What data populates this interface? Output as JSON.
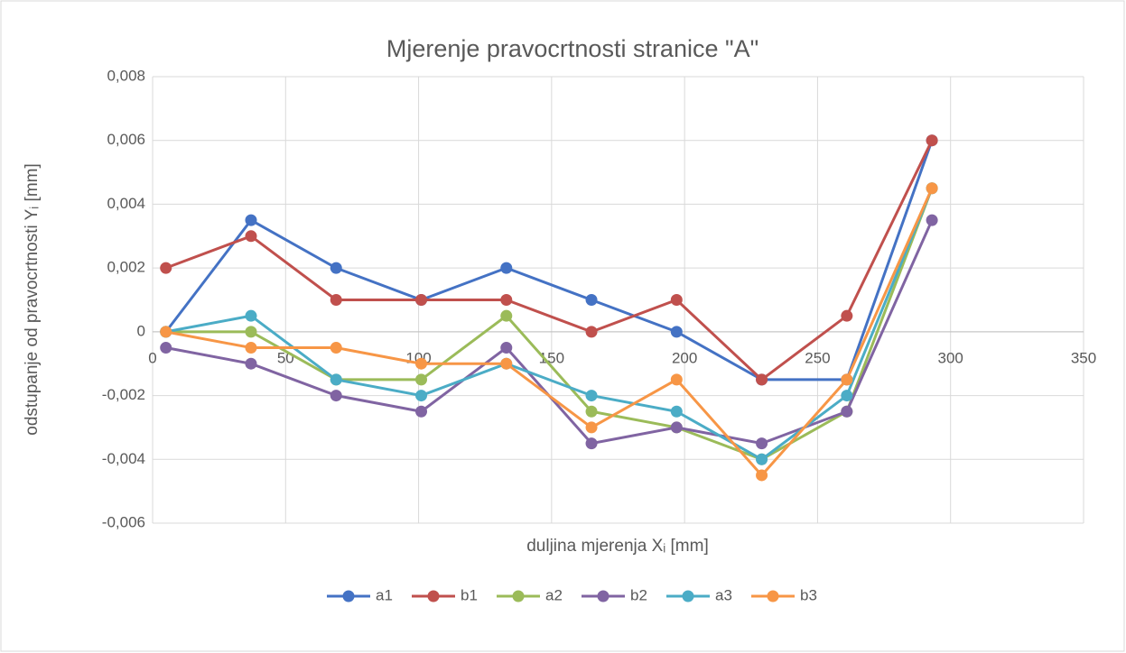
{
  "chart_data": {
    "type": "line",
    "title": "Mjerenje pravocrtnosti stranice \"A\"",
    "x_label": "duljina mjerenja Xᵢ [mm]",
    "y_label": "odstupanje od pravocrtnosti Yᵢ [mm]",
    "x": [
      5,
      37,
      69,
      101,
      133,
      165,
      197,
      229,
      261,
      293
    ],
    "xlim": [
      0,
      350
    ],
    "xticks": [
      0,
      50,
      100,
      150,
      200,
      250,
      300,
      350
    ],
    "ylim": [
      -0.006,
      0.008
    ],
    "yticks": [
      {
        "value": -0.006,
        "label": "-0,006"
      },
      {
        "value": -0.004,
        "label": "-0,004"
      },
      {
        "value": -0.002,
        "label": "-0,002"
      },
      0,
      {
        "value": 0.002,
        "label": "0,002"
      },
      {
        "value": 0.004,
        "label": "0,004"
      },
      {
        "value": 0.006,
        "label": "0,006"
      },
      {
        "value": 0.008,
        "label": "0,008"
      }
    ],
    "grid": true,
    "legend": "bottom",
    "series": [
      {
        "name": "a1",
        "color": "#4472c4",
        "values": [
          0,
          0.0035,
          0.002,
          0.001,
          0.002,
          0.001,
          0,
          -0.0015,
          -0.0015,
          0.006
        ]
      },
      {
        "name": "b1",
        "color": "#c0504d",
        "values": [
          0.002,
          0.003,
          0.001,
          0.001,
          0.001,
          0,
          0.001,
          -0.0015,
          0.0005,
          0.006
        ]
      },
      {
        "name": "a2",
        "color": "#9bbb59",
        "values": [
          0,
          0,
          -0.0015,
          -0.0015,
          0.0005,
          -0.0025,
          -0.003,
          -0.004,
          -0.0025,
          0.0045
        ]
      },
      {
        "name": "b2",
        "color": "#8064a2",
        "values": [
          -0.0005,
          -0.001,
          -0.002,
          -0.0025,
          -0.0005,
          -0.0035,
          -0.003,
          -0.0035,
          -0.0025,
          0.0035
        ]
      },
      {
        "name": "a3",
        "color": "#4bacc6",
        "values": [
          0,
          0.0005,
          -0.0015,
          -0.002,
          -0.001,
          -0.002,
          -0.0025,
          -0.004,
          -0.002,
          0.0045
        ]
      },
      {
        "name": "b3",
        "color": "#f79646",
        "values": [
          0,
          -0.0005,
          -0.0005,
          -0.001,
          -0.001,
          -0.003,
          -0.0015,
          -0.0045,
          -0.0015,
          0.0045
        ]
      }
    ]
  }
}
